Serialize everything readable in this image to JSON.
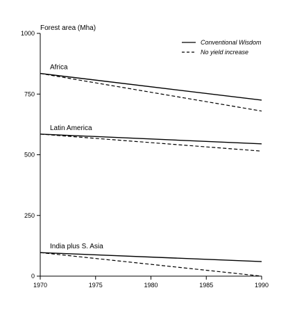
{
  "chart_data": {
    "type": "line",
    "title": "Forest area (Mha)",
    "xlabel": "",
    "ylabel": "",
    "x": [
      1970,
      1990
    ],
    "xlim": [
      1970,
      1990
    ],
    "ylim": [
      0,
      1000
    ],
    "xticks": [
      "1970",
      "1975",
      "1980",
      "1985",
      "1990"
    ],
    "yticks": [
      "0",
      "250",
      "500",
      "750",
      "1000"
    ],
    "legend": {
      "position": "top-right",
      "entries": [
        {
          "label": "Conventional Wisdom",
          "style": "solid"
        },
        {
          "label": "No yield increase",
          "style": "dashed"
        }
      ]
    },
    "groups": [
      {
        "label": "Africa",
        "conventional": [
          835,
          725
        ],
        "no_yield": [
          835,
          680
        ]
      },
      {
        "label": "Latin America",
        "conventional": [
          585,
          545
        ],
        "no_yield": [
          585,
          515
        ]
      },
      {
        "label": "India plus S. Asia",
        "conventional": [
          97,
          60
        ],
        "no_yield": [
          97,
          0
        ]
      }
    ],
    "grid": false,
    "colors": {
      "line": "#000000",
      "axis": "#000000"
    }
  }
}
